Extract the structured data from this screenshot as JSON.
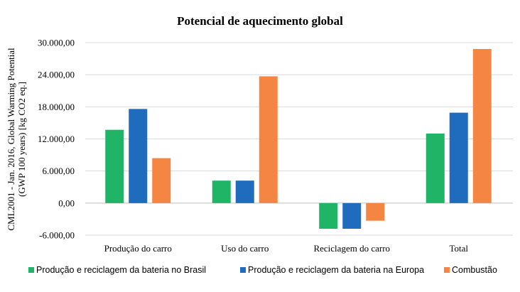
{
  "chart_data": {
    "type": "bar",
    "title": "Potencial de aquecimento global",
    "ylabel_lines": [
      "CML2001 - Jan. 2016, Global Warming Potential",
      "(GWP 100 years) [kg CO2 eq.]"
    ],
    "xlabel": "",
    "categories": [
      "Produção do carro",
      "Uso do carro",
      "Reciclagem do carro",
      "Total"
    ],
    "ylim": [
      -6000,
      30000
    ],
    "yticks": [
      -6000,
      0,
      6000,
      12000,
      18000,
      24000,
      30000
    ],
    "ytick_labels": [
      "-6.000,00",
      "0,00",
      "6.000,00",
      "12.000,00",
      "18.000,00",
      "24.000,00",
      "30.000,00"
    ],
    "grid": true,
    "legend_position": "bottom",
    "series": [
      {
        "name": "Produção e reciclagem da bateria no Brasil",
        "color": "#1fb466",
        "values": [
          13700,
          4200,
          -4800,
          13000
        ]
      },
      {
        "name": "Produção e reciclagem da bateria na Europa",
        "color": "#1f6bbd",
        "values": [
          17600,
          4200,
          -4800,
          16900
        ]
      },
      {
        "name": "Combustão",
        "color": "#f58542",
        "values": [
          8400,
          23700,
          -3300,
          28800
        ]
      }
    ]
  }
}
